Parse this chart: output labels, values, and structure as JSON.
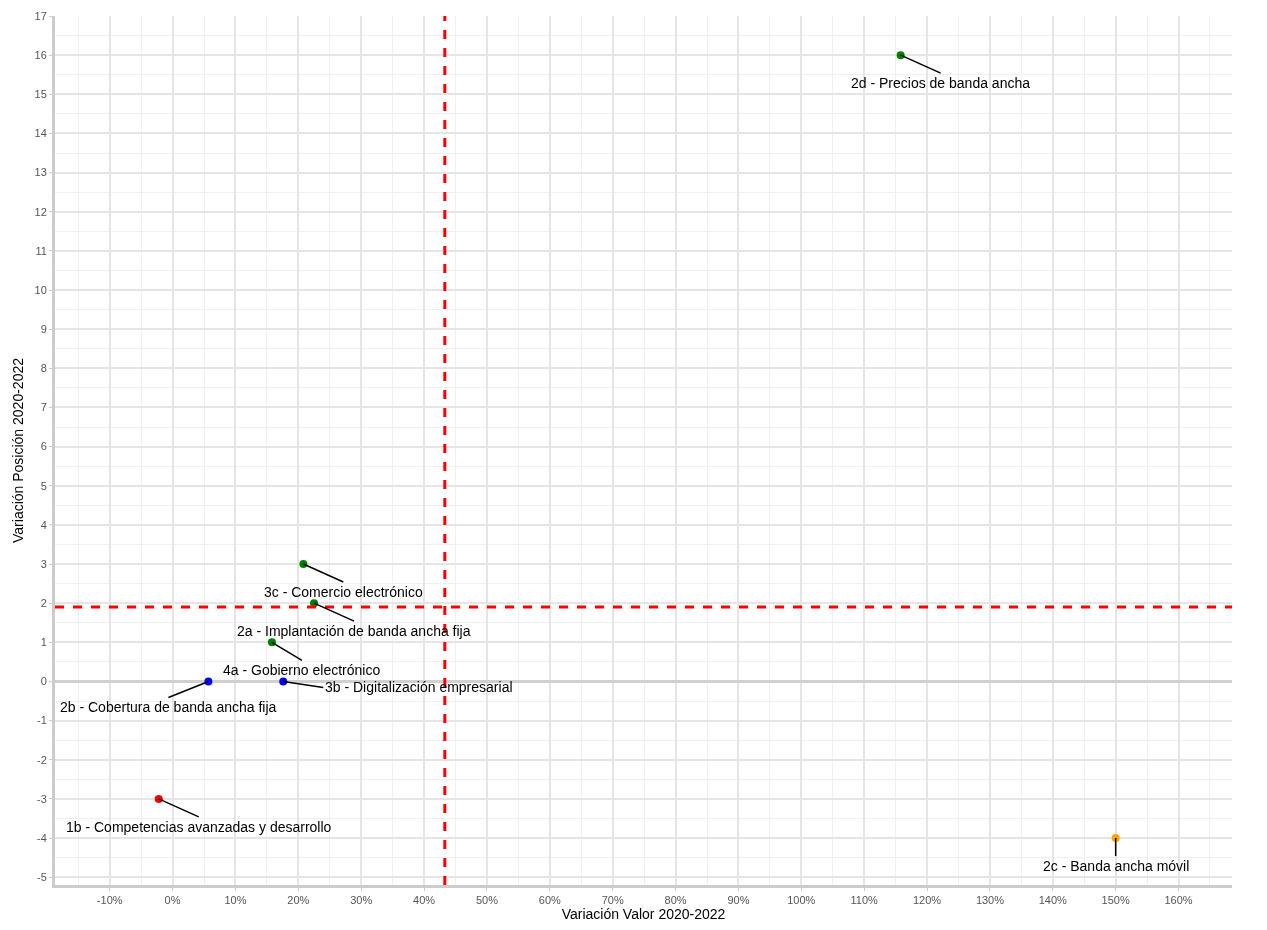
{
  "chart_data": {
    "type": "scatter",
    "xlabel": "Variación Valor 2020-2022",
    "ylabel": "Variación Posición 2020-2022",
    "x": [
      115.8,
      20.8,
      22.5,
      15.8,
      5.7,
      17.6,
      -2.2,
      150
    ],
    "values": [
      16,
      3,
      2,
      1,
      0,
      0,
      -3,
      -4
    ],
    "colors": [
      "#008000",
      "#008000",
      "#008000",
      "#008000",
      "#0000ff",
      "#0000ff",
      "#ff0000",
      "#ffa500"
    ],
    "annotations": [
      {
        "text": "2d - Precios de banda ancha",
        "x": 115.8,
        "y": 16
      },
      {
        "text": "3c - Comercio electrónico",
        "x": 20.8,
        "y": 3
      },
      {
        "text": "2a - Implantación de banda ancha fija",
        "x": 22.5,
        "y": 2
      },
      {
        "text": "4a - Gobierno electrónico",
        "x": 15.8,
        "y": 1
      },
      {
        "text": "2b - Cobertura de banda ancha fija",
        "x": 5.7,
        "y": 0
      },
      {
        "text": "3b - Digitalización empresarial",
        "x": 17.6,
        "y": 0
      },
      {
        "text": "1b - Competencias avanzadas y desarrollo",
        "x": -2.2,
        "y": -3
      },
      {
        "text": "2c - Banda ancha móvil",
        "x": 150,
        "y": -4
      }
    ],
    "ref_lines": [
      {
        "axis": "x",
        "value": 43.3,
        "color": "#ff0000",
        "line_style": "dashed"
      },
      {
        "axis": "y",
        "value": 1.9,
        "color": "#ff0000",
        "line_style": "dashed"
      }
    ],
    "xlim": [
      -18.7,
      168.5
    ],
    "ylim": [
      -5.2,
      17
    ],
    "xticks": [
      {
        "value": -10,
        "label": "-10%"
      },
      {
        "value": 0,
        "label": "0%"
      },
      {
        "value": 10,
        "label": "10%"
      },
      {
        "value": 20,
        "label": "20%"
      },
      {
        "value": 30,
        "label": "30%"
      },
      {
        "value": 40,
        "label": "40%"
      },
      {
        "value": 50,
        "label": "50%"
      },
      {
        "value": 60,
        "label": "60%"
      },
      {
        "value": 70,
        "label": "70%"
      },
      {
        "value": 80,
        "label": "80%"
      },
      {
        "value": 90,
        "label": "90%"
      },
      {
        "value": 100,
        "label": "100%"
      },
      {
        "value": 110,
        "label": "110%"
      },
      {
        "value": 120,
        "label": "120%"
      },
      {
        "value": 130,
        "label": "130%"
      },
      {
        "value": 140,
        "label": "140%"
      },
      {
        "value": 150,
        "label": "150%"
      },
      {
        "value": 160,
        "label": "160%"
      }
    ],
    "yticks": [
      -5,
      -4,
      -3,
      -2,
      -1,
      0,
      1,
      2,
      3,
      4,
      5,
      6,
      7,
      8,
      9,
      10,
      11,
      12,
      13,
      14,
      15,
      16,
      17
    ],
    "grid": true,
    "marker": "circle",
    "legend": false
  }
}
